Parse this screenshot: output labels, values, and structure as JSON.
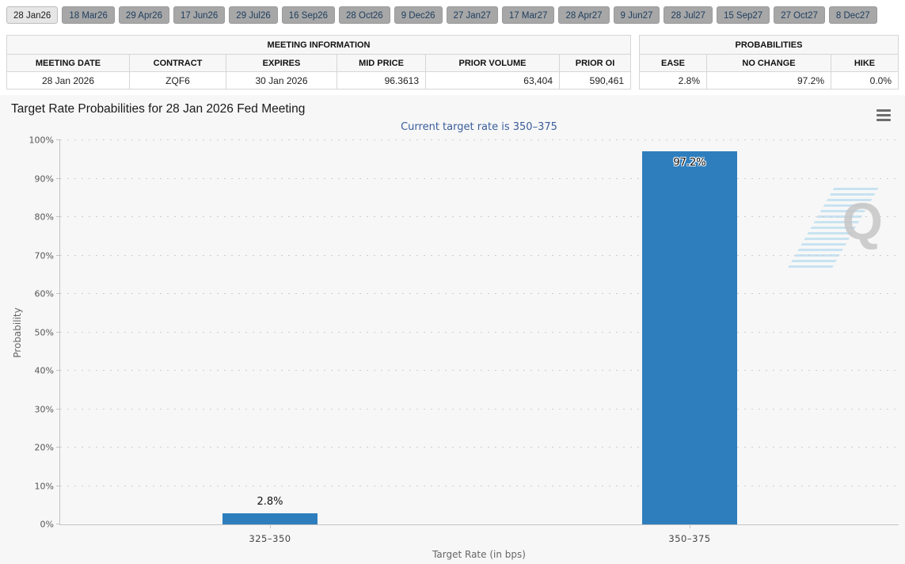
{
  "tabs": {
    "items": [
      {
        "label": "28 Jan26",
        "selected": true
      },
      {
        "label": "18 Mar26",
        "selected": false
      },
      {
        "label": "29 Apr26",
        "selected": false
      },
      {
        "label": "17 Jun26",
        "selected": false
      },
      {
        "label": "29 Jul26",
        "selected": false
      },
      {
        "label": "16 Sep26",
        "selected": false
      },
      {
        "label": "28 Oct26",
        "selected": false
      },
      {
        "label": "9 Dec26",
        "selected": false
      },
      {
        "label": "27 Jan27",
        "selected": false
      },
      {
        "label": "17 Mar27",
        "selected": false
      },
      {
        "label": "28 Apr27",
        "selected": false
      },
      {
        "label": "9 Jun27",
        "selected": false
      },
      {
        "label": "28 Jul27",
        "selected": false
      },
      {
        "label": "15 Sep27",
        "selected": false
      },
      {
        "label": "27 Oct27",
        "selected": false
      },
      {
        "label": "8 Dec27",
        "selected": false
      }
    ]
  },
  "meeting_info": {
    "title": "MEETING INFORMATION",
    "columns": [
      "MEETING DATE",
      "CONTRACT",
      "EXPIRES",
      "MID PRICE",
      "PRIOR VOLUME",
      "PRIOR OI"
    ],
    "row": [
      "28 Jan 2026",
      "ZQF6",
      "30 Jan 2026",
      "96.3613",
      "63,404",
      "590,461"
    ]
  },
  "probabilities": {
    "title": "PROBABILITIES",
    "columns": [
      "EASE",
      "NO CHANGE",
      "HIKE"
    ],
    "row": [
      "2.8%",
      "97.2%",
      "0.0%"
    ]
  },
  "chart": {
    "menu_icon": "hamburger-menu-icon",
    "watermark_letter": "Q"
  },
  "chart_data": {
    "type": "bar",
    "title": "Target Rate Probabilities for 28 Jan 2026 Fed Meeting",
    "subtitle": "Current target rate is 350–375",
    "categories": [
      "325–350",
      "350–375"
    ],
    "values": [
      2.8,
      97.2
    ],
    "value_labels": [
      "2.8%",
      "97.2%"
    ],
    "xlabel": "Target Rate (in bps)",
    "ylabel": "Probability",
    "ylim": [
      0,
      100
    ],
    "ytick_step": 10,
    "ytick_suffix": "%",
    "grid": "dotted-horizontal",
    "legend": "none",
    "bar_color": "#2e7ebd",
    "subtitle_color": "#3a5d9b"
  }
}
